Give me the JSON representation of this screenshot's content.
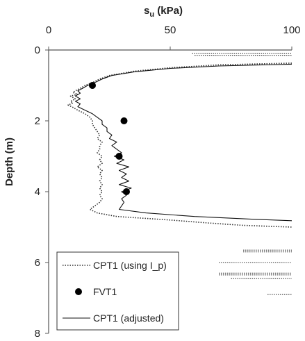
{
  "chart_data": {
    "type": "line",
    "title": "",
    "xlabel_main": "s",
    "xlabel_sub": "u",
    "xlabel_unit": " (kPa)",
    "ylabel": "Depth (m)",
    "xlim": [
      0,
      100
    ],
    "ylim": [
      0,
      8
    ],
    "x_axis_position": "top",
    "y_inverted": true,
    "grid": false,
    "x_ticks": [
      "0",
      "50",
      "100"
    ],
    "y_ticks": [
      "0",
      "2",
      "4",
      "6",
      "8"
    ],
    "legend": {
      "placement": "bottom-left",
      "entries": [
        "CPT1 (using I_p)",
        "FVT1",
        "CPT1 (adjusted)"
      ]
    },
    "series": [
      {
        "name": "CPT1 (using I_p)",
        "style": "dotted",
        "color": "#333333",
        "points": [
          [
            100,
            0.37
          ],
          [
            70,
            0.42
          ],
          [
            50,
            0.5
          ],
          [
            35,
            0.6
          ],
          [
            25,
            0.72
          ],
          [
            21,
            0.82
          ],
          [
            18,
            0.92
          ],
          [
            15,
            1.0
          ],
          [
            13,
            1.08
          ],
          [
            11,
            1.15
          ],
          [
            10,
            1.2
          ],
          [
            12,
            1.25
          ],
          [
            9,
            1.3
          ],
          [
            11,
            1.38
          ],
          [
            9,
            1.45
          ],
          [
            10,
            1.5
          ],
          [
            8,
            1.55
          ],
          [
            10,
            1.62
          ],
          [
            12,
            1.7
          ],
          [
            15,
            1.8
          ],
          [
            17,
            1.9
          ],
          [
            18,
            2.0
          ],
          [
            18,
            2.1
          ],
          [
            19,
            2.2
          ],
          [
            20,
            2.3
          ],
          [
            21,
            2.4
          ],
          [
            20,
            2.5
          ],
          [
            22,
            2.6
          ],
          [
            21,
            2.7
          ],
          [
            21,
            2.8
          ],
          [
            20,
            2.9
          ],
          [
            22,
            3.0
          ],
          [
            21,
            3.1
          ],
          [
            22,
            3.2
          ],
          [
            20,
            3.3
          ],
          [
            22,
            3.4
          ],
          [
            21,
            3.5
          ],
          [
            22,
            3.6
          ],
          [
            21,
            3.7
          ],
          [
            22,
            3.8
          ],
          [
            21,
            3.9
          ],
          [
            22,
            4.0
          ],
          [
            21,
            4.1
          ],
          [
            22,
            4.2
          ],
          [
            21,
            4.3
          ],
          [
            19,
            4.4
          ],
          [
            17,
            4.5
          ],
          [
            20,
            4.6
          ],
          [
            28,
            4.7
          ],
          [
            50,
            4.8
          ],
          [
            65,
            4.88
          ],
          [
            80,
            4.95
          ],
          [
            100,
            5.0
          ]
        ]
      },
      {
        "name": "CPT1 (adjusted)",
        "style": "solid",
        "color": "#111111",
        "points": [
          [
            100,
            0.4
          ],
          [
            70,
            0.45
          ],
          [
            50,
            0.52
          ],
          [
            35,
            0.62
          ],
          [
            26,
            0.72
          ],
          [
            22,
            0.82
          ],
          [
            19,
            0.92
          ],
          [
            16,
            1.0
          ],
          [
            14,
            1.08
          ],
          [
            12,
            1.15
          ],
          [
            13,
            1.22
          ],
          [
            11,
            1.3
          ],
          [
            13,
            1.38
          ],
          [
            11,
            1.45
          ],
          [
            13,
            1.52
          ],
          [
            12,
            1.6
          ],
          [
            15,
            1.7
          ],
          [
            18,
            1.8
          ],
          [
            20,
            1.9
          ],
          [
            22,
            2.0
          ],
          [
            22,
            2.1
          ],
          [
            24,
            2.2
          ],
          [
            24,
            2.3
          ],
          [
            26,
            2.4
          ],
          [
            25,
            2.5
          ],
          [
            28,
            2.6
          ],
          [
            26,
            2.7
          ],
          [
            28,
            2.8
          ],
          [
            30,
            2.9
          ],
          [
            27,
            3.0
          ],
          [
            31,
            3.1
          ],
          [
            28,
            3.2
          ],
          [
            33,
            3.3
          ],
          [
            29,
            3.4
          ],
          [
            32,
            3.5
          ],
          [
            30,
            3.6
          ],
          [
            33,
            3.7
          ],
          [
            29,
            3.8
          ],
          [
            34,
            3.9
          ],
          [
            30,
            4.0
          ],
          [
            32,
            4.1
          ],
          [
            30,
            4.2
          ],
          [
            31,
            4.3
          ],
          [
            30,
            4.4
          ],
          [
            29,
            4.5
          ],
          [
            40,
            4.6
          ],
          [
            60,
            4.7
          ],
          [
            85,
            4.78
          ],
          [
            100,
            4.82
          ]
        ]
      }
    ],
    "points_series": {
      "name": "FVT1",
      "marker": "filled-circle",
      "color": "#000000",
      "points": [
        [
          18,
          1.0
        ],
        [
          31,
          2.0
        ],
        [
          29,
          3.0
        ],
        [
          32,
          4.0
        ]
      ]
    },
    "right_edge_lines": [
      [
        [
          59,
          0.1
        ],
        [
          100,
          0.1
        ]
      ],
      [
        [
          60,
          0.15
        ],
        [
          100,
          0.15
        ]
      ],
      [
        [
          80,
          5.65
        ],
        [
          100,
          5.65
        ]
      ],
      [
        [
          80,
          5.7
        ],
        [
          100,
          5.7
        ]
      ],
      [
        [
          70,
          6.0
        ],
        [
          100,
          6.0
        ]
      ],
      [
        [
          70,
          6.3
        ],
        [
          100,
          6.3
        ]
      ],
      [
        [
          70,
          6.35
        ],
        [
          100,
          6.35
        ]
      ],
      [
        [
          75,
          6.45
        ],
        [
          100,
          6.45
        ]
      ],
      [
        [
          90,
          6.9
        ],
        [
          100,
          6.9
        ]
      ]
    ]
  }
}
